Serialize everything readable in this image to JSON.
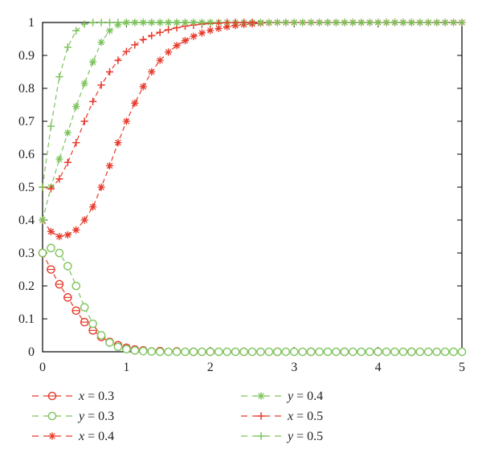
{
  "chart_data": {
    "type": "line",
    "title": "",
    "xlabel": "",
    "ylabel": "",
    "xlim": [
      0,
      5
    ],
    "ylim": [
      0,
      1
    ],
    "xticks": [
      "0",
      "1",
      "2",
      "3",
      "4",
      "5"
    ],
    "yticks": [
      "0",
      "0.1",
      "0.2",
      "0.3",
      "0.4",
      "0.5",
      "0.6",
      "0.7",
      "0.8",
      "0.9",
      "1"
    ],
    "grid": false,
    "legend_position": "bottom",
    "colors": {
      "red": "#e8392a",
      "green": "#7cc35b"
    },
    "series": [
      {
        "var": "x",
        "eq": " = 0.3",
        "color": "#e8392a",
        "marker": "circle-half",
        "x": [
          0,
          0.1,
          0.2,
          0.3,
          0.4,
          0.5,
          0.6,
          0.7,
          0.8,
          0.9,
          1.0,
          1.1,
          1.2,
          1.4,
          1.6,
          1.8,
          2.0,
          2.4,
          2.8,
          3.2,
          3.6,
          4.0,
          4.4
        ],
        "y": [
          0.3,
          0.25,
          0.205,
          0.165,
          0.125,
          0.09,
          0.065,
          0.045,
          0.03,
          0.02,
          0.012,
          0.007,
          0.004,
          0.002,
          0.001,
          0,
          0,
          0,
          0,
          0,
          0,
          0,
          0
        ]
      },
      {
        "var": "y",
        "eq": " = 0.3",
        "color": "#7cc35b",
        "marker": "circle",
        "x": [
          0,
          0.1,
          0.2,
          0.3,
          0.4,
          0.5,
          0.6,
          0.7,
          0.8,
          0.9,
          1.0,
          1.1,
          1.2,
          1.3,
          1.4,
          1.5,
          1.6,
          1.7,
          1.8,
          1.9,
          2.0,
          2.1,
          2.2,
          2.3,
          2.4,
          2.5,
          2.6,
          2.7,
          2.8,
          2.9,
          3.0,
          3.1,
          3.2,
          3.3,
          3.4,
          3.5,
          3.6,
          3.7,
          3.8,
          3.9,
          4.0,
          4.1,
          4.2,
          4.3,
          4.4,
          4.5,
          4.6,
          4.7,
          4.8,
          4.9,
          5.0
        ],
        "y": [
          0.3,
          0.315,
          0.3,
          0.26,
          0.2,
          0.135,
          0.085,
          0.05,
          0.028,
          0.015,
          0.008,
          0.004,
          0.002,
          0.001,
          0,
          0,
          0,
          0,
          0,
          0,
          0,
          0,
          0,
          0,
          0,
          0,
          0,
          0,
          0,
          0,
          0,
          0,
          0,
          0,
          0,
          0,
          0,
          0,
          0,
          0,
          0,
          0,
          0,
          0,
          0,
          0,
          0,
          0,
          0,
          0,
          0
        ]
      },
      {
        "var": "x",
        "eq": " = 0.4",
        "color": "#e8392a",
        "marker": "asterisk",
        "x": [
          0,
          0.1,
          0.2,
          0.3,
          0.4,
          0.5,
          0.6,
          0.7,
          0.8,
          0.9,
          1.0,
          1.1,
          1.2,
          1.3,
          1.4,
          1.5,
          1.6,
          1.7,
          1.8,
          1.9,
          2.0,
          2.1,
          2.2,
          2.3,
          2.4,
          2.5,
          2.6,
          2.7,
          2.8,
          2.9,
          3.0,
          3.1,
          3.2,
          3.3,
          3.4,
          3.5,
          3.6,
          3.7,
          3.8,
          3.9,
          4.0,
          4.1,
          4.2,
          4.3,
          4.4,
          4.5,
          4.6,
          4.7,
          4.8,
          4.9,
          5.0
        ],
        "y": [
          0.4,
          0.365,
          0.35,
          0.355,
          0.37,
          0.4,
          0.44,
          0.5,
          0.565,
          0.635,
          0.7,
          0.755,
          0.805,
          0.85,
          0.885,
          0.91,
          0.93,
          0.945,
          0.958,
          0.968,
          0.976,
          0.982,
          0.987,
          0.991,
          0.994,
          0.996,
          0.998,
          0.999,
          1,
          1,
          1,
          1,
          1,
          1,
          1,
          1,
          1,
          1,
          1,
          1,
          1,
          1,
          1,
          1,
          1,
          1,
          1,
          1,
          1,
          1,
          1
        ]
      },
      {
        "var": "y",
        "eq": " = 0.4",
        "color": "#7cc35b",
        "marker": "asterisk",
        "x": [
          0,
          0.1,
          0.2,
          0.3,
          0.4,
          0.5,
          0.6,
          0.7,
          0.8,
          0.9,
          1.0,
          1.1,
          1.2,
          1.3,
          1.4,
          1.5,
          1.6,
          1.7,
          1.8,
          1.9,
          2.0,
          2.1,
          2.2,
          2.3,
          2.4,
          2.5,
          2.6,
          2.7,
          2.8,
          2.9,
          3.0,
          3.1,
          3.2,
          3.3,
          3.4,
          3.5,
          3.6,
          3.7,
          3.8,
          3.9,
          4.0,
          4.1,
          4.2,
          4.3,
          4.4,
          4.5,
          4.6,
          4.7,
          4.8,
          4.9,
          5.0
        ],
        "y": [
          0.4,
          0.5,
          0.585,
          0.665,
          0.745,
          0.815,
          0.88,
          0.94,
          0.975,
          0.993,
          1,
          1,
          1,
          1,
          1,
          1,
          1,
          1,
          1,
          1,
          1,
          1,
          1,
          1,
          1,
          1,
          1,
          1,
          1,
          1,
          1,
          1,
          1,
          1,
          1,
          1,
          1,
          1,
          1,
          1,
          1,
          1,
          1,
          1,
          1,
          1,
          1,
          1,
          1,
          1,
          1
        ]
      },
      {
        "var": "x",
        "eq": " = 0.5",
        "color": "#e8392a",
        "marker": "plus",
        "x": [
          0,
          0.1,
          0.2,
          0.3,
          0.4,
          0.5,
          0.6,
          0.7,
          0.8,
          0.9,
          1.0,
          1.1,
          1.2,
          1.3,
          1.4,
          1.5,
          1.6,
          1.7,
          1.8,
          1.9,
          2.0,
          2.1,
          2.2,
          2.3,
          2.4,
          2.5
        ],
        "y": [
          0.5,
          0.495,
          0.525,
          0.575,
          0.635,
          0.7,
          0.76,
          0.81,
          0.85,
          0.885,
          0.912,
          0.932,
          0.948,
          0.96,
          0.97,
          0.978,
          0.984,
          0.989,
          0.992,
          0.995,
          0.997,
          0.998,
          0.999,
          1,
          1,
          1
        ]
      },
      {
        "var": "y",
        "eq": " = 0.5",
        "color": "#7cc35b",
        "marker": "plus",
        "x": [
          0,
          0.1,
          0.2,
          0.3,
          0.4,
          0.5,
          0.6,
          0.7,
          0.8,
          0.9,
          1.0,
          1.1,
          1.2,
          1.3,
          1.4,
          1.5,
          1.6,
          1.7,
          1.8,
          1.9,
          2.0
        ],
        "y": [
          0.5,
          0.685,
          0.835,
          0.925,
          0.975,
          0.995,
          1,
          1,
          1,
          1,
          1,
          1,
          1,
          1,
          1,
          1,
          1,
          1,
          1,
          1,
          1
        ]
      }
    ]
  }
}
